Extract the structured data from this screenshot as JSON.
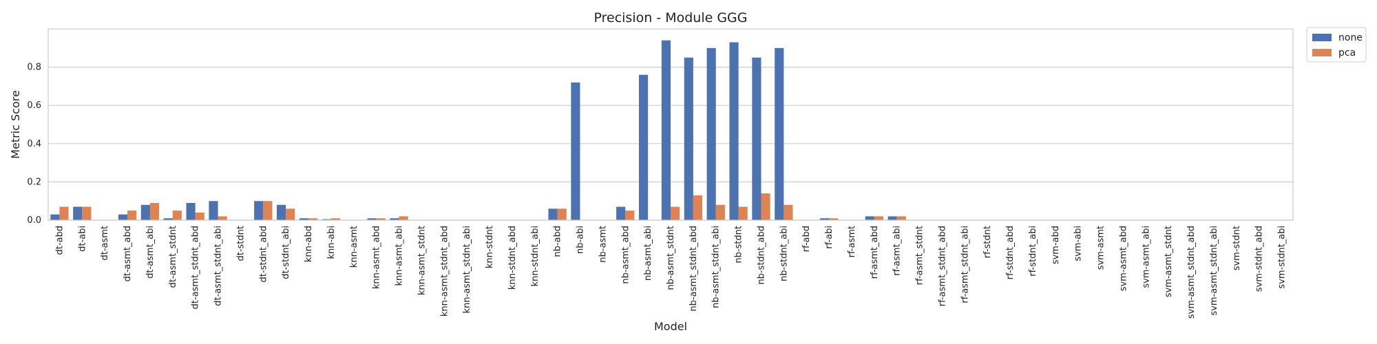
{
  "chart_data": {
    "type": "bar",
    "title": "Precision - Module GGG",
    "xlabel": "Model",
    "ylabel": "Metric Score",
    "ylim": [
      0,
      1.0
    ],
    "yticks": [
      0.0,
      0.2,
      0.4,
      0.6,
      0.8
    ],
    "ytick_labels": [
      "0.0",
      "0.2",
      "0.4",
      "0.6",
      "0.8"
    ],
    "grid": "horizontal",
    "legend_position": "outside-top-right",
    "categories": [
      "dt-abd",
      "dt-abi",
      "dt-asmt",
      "dt-asmt_abd",
      "dt-asmt_abi",
      "dt-asmt_stdnt",
      "dt-asmt_stdnt_abd",
      "dt-asmt_stdnt_abi",
      "dt-stdnt",
      "dt-stdnt_abd",
      "dt-stdnt_abi",
      "knn-abd",
      "knn-abi",
      "knn-asmt",
      "knn-asmt_abd",
      "knn-asmt_abi",
      "knn-asmt_stdnt",
      "knn-asmt_stdnt_abd",
      "knn-asmt_stdnt_abi",
      "knn-stdnt",
      "knn-stdnt_abd",
      "knn-stdnt_abi",
      "nb-abd",
      "nb-abi",
      "nb-asmt",
      "nb-asmt_abd",
      "nb-asmt_abi",
      "nb-asmt_stdnt",
      "nb-asmt_stdnt_abd",
      "nb-asmt_stdnt_abi",
      "nb-stdnt",
      "nb-stdnt_abd",
      "nb-stdnt_abi",
      "rf-abd",
      "rf-abi",
      "rf-asmt",
      "rf-asmt_abd",
      "rf-asmt_abi",
      "rf-asmt_stdnt",
      "rf-asmt_stdnt_abd",
      "rf-asmt_stdnt_abi",
      "rf-stdnt",
      "rf-stdnt_abd",
      "rf-stdnt_abi",
      "svm-abd",
      "svm-abi",
      "svm-asmt",
      "svm-asmt_abd",
      "svm-asmt_abi",
      "svm-asmt_stdnt",
      "svm-asmt_stdnt_abd",
      "svm-asmt_stdnt_abi",
      "svm-stdnt",
      "svm-stdnt_abd",
      "svm-stdnt_abi"
    ],
    "series": [
      {
        "name": "none",
        "color": "#4c72b0",
        "values": [
          0.03,
          0.07,
          0.0,
          0.03,
          0.08,
          0.01,
          0.09,
          0.1,
          0.0,
          0.1,
          0.08,
          0.01,
          0.005,
          0.0,
          0.01,
          0.01,
          0.0,
          0.0,
          0.0,
          0.0,
          0.0,
          0.0,
          0.06,
          0.72,
          0.0,
          0.07,
          0.76,
          0.94,
          0.85,
          0.9,
          0.93,
          0.85,
          0.9,
          0.0,
          0.01,
          0.0,
          0.02,
          0.02,
          0.0,
          0.0,
          0.0,
          0.0,
          0.0,
          0.0,
          0.0,
          0.0,
          0.0,
          0.0,
          0.0,
          0.0,
          0.0,
          0.0,
          0.0,
          0.0,
          0.0
        ]
      },
      {
        "name": "pca",
        "color": "#dd8452",
        "values": [
          0.07,
          0.07,
          0.0,
          0.05,
          0.09,
          0.05,
          0.04,
          0.02,
          0.0,
          0.1,
          0.06,
          0.01,
          0.01,
          0.0,
          0.01,
          0.02,
          0.0,
          0.0,
          0.0,
          0.0,
          0.0,
          0.0,
          0.06,
          0.0,
          0.0,
          0.05,
          0.0,
          0.07,
          0.13,
          0.08,
          0.07,
          0.14,
          0.08,
          0.0,
          0.01,
          0.0,
          0.02,
          0.02,
          0.0,
          0.0,
          0.0,
          0.0,
          0.0,
          0.0,
          0.0,
          0.0,
          0.0,
          0.0,
          0.0,
          0.0,
          0.0,
          0.0,
          0.0,
          0.0,
          0.0
        ]
      }
    ]
  }
}
